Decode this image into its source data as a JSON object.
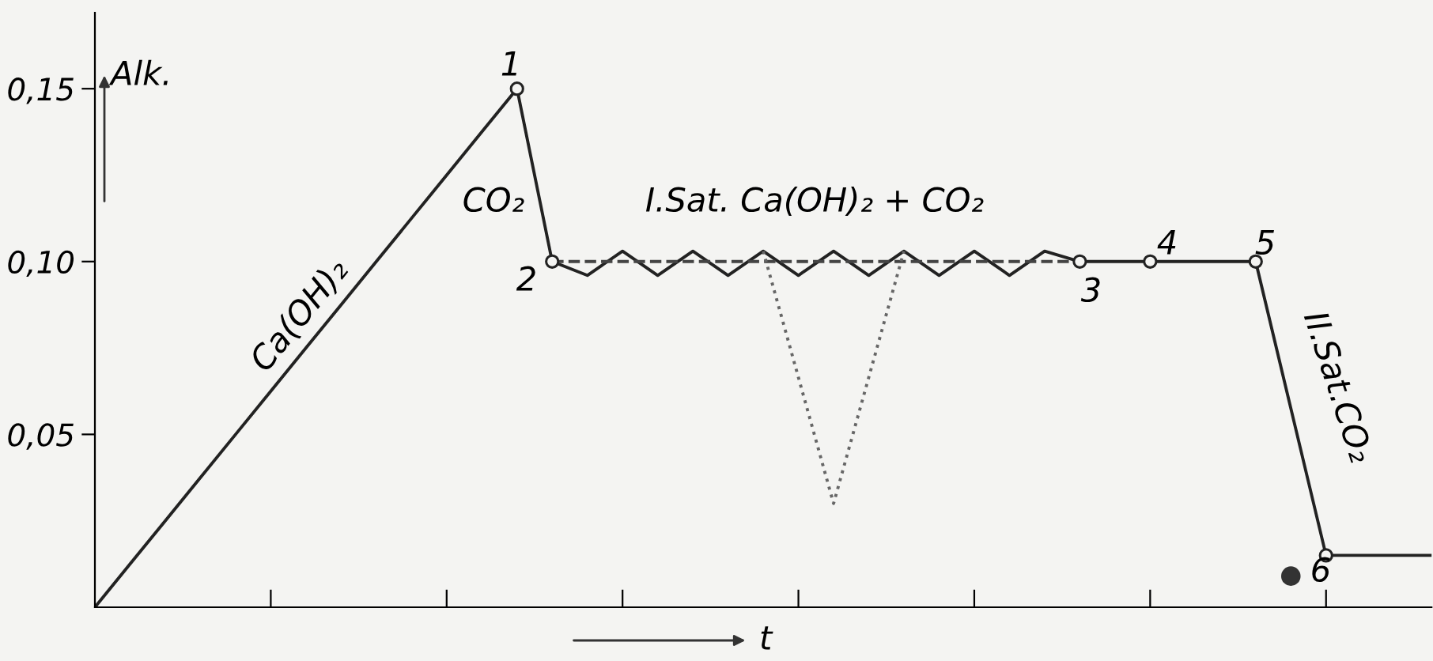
{
  "chart_data": {
    "type": "line",
    "ylabel": "Alk.",
    "xlabel": "t",
    "categories": [
      null,
      null,
      null,
      null,
      null,
      null,
      null,
      null,
      null,
      null,
      null,
      null,
      null,
      null,
      null,
      null,
      null,
      null,
      null,
      null,
      null,
      null,
      null,
      null,
      null,
      null,
      null,
      null,
      null,
      null,
      null,
      null,
      null,
      null,
      null,
      null,
      null,
      null,
      null
    ],
    "series": [
      {
        "color": "#222222",
        "values": [
          0,
          0.0125,
          0.025,
          0.0375,
          0.05,
          0.0625,
          0.075,
          0.0875,
          0.1,
          0.1125,
          0.125,
          0.1375,
          0.15,
          0.1,
          0.096,
          0.103,
          0.096,
          0.103,
          0.096,
          0.103,
          0.096,
          0.103,
          0.096,
          0.103,
          0.096,
          0.103,
          0.096,
          0.103,
          0.1,
          0.1,
          0.1,
          0.1,
          0.1,
          0.1,
          0.0575,
          0.015,
          0.015,
          0.015,
          0.015
        ]
      },
      {
        "color": "#444444",
        "line_style": "dashed",
        "values": [
          null,
          null,
          null,
          null,
          null,
          null,
          null,
          null,
          null,
          null,
          null,
          null,
          null,
          0.1,
          0.1,
          0.1,
          0.1,
          0.1,
          0.1,
          0.1,
          0.1,
          0.1,
          0.1,
          0.1,
          0.1,
          0.1,
          0.1,
          0.1,
          0.1,
          null,
          null,
          null,
          null,
          null,
          null,
          null,
          null,
          null,
          null
        ]
      },
      {
        "color": "#666666",
        "line_style": "dotted",
        "values": [
          null,
          null,
          null,
          null,
          null,
          null,
          null,
          null,
          null,
          null,
          null,
          null,
          null,
          null,
          null,
          null,
          null,
          null,
          null,
          0.103,
          0.0665,
          0.03,
          0.0665,
          0.103,
          null,
          null,
          null,
          null,
          null,
          null,
          null,
          null,
          null,
          null,
          null,
          null,
          null,
          null,
          null
        ]
      },
      {
        "type": "scatter",
        "color": "#222222",
        "marker": "circle",
        "values": [
          null,
          null,
          null,
          null,
          null,
          null,
          null,
          null,
          null,
          null,
          null,
          null,
          0.15,
          0.1,
          null,
          null,
          null,
          null,
          null,
          null,
          null,
          null,
          null,
          null,
          null,
          null,
          null,
          null,
          0.1,
          null,
          0.1,
          null,
          null,
          0.1,
          null,
          0.015,
          null,
          null,
          null
        ]
      },
      {
        "type": "scatter",
        "color": "#333333",
        "marker": "circle",
        "values": [
          null,
          null,
          null,
          null,
          null,
          null,
          null,
          null,
          null,
          null,
          null,
          null,
          null,
          null,
          null,
          null,
          null,
          null,
          null,
          null,
          null,
          null,
          null,
          null,
          null,
          null,
          null,
          null,
          null,
          null,
          null,
          null,
          null,
          null,
          0.009,
          null,
          null,
          null,
          null
        ]
      }
    ],
    "ylim": [
      0,
      0.172
    ],
    "yticks": [
      {
        "value": 0.05,
        "label": "0,05"
      },
      {
        "value": 0.1,
        "label": "0,10"
      },
      {
        "value": 0.15,
        "label": "0,15"
      }
    ],
    "tick_labels": "y",
    "grid": false,
    "legend": false,
    "annotations": [
      "Ca(OH)₂",
      "CO₂",
      "I.Sat. Ca(OH)₂ + CO₂",
      "II.Sat.CO₂",
      "1",
      "2",
      "3",
      "4",
      "5",
      "6"
    ]
  }
}
